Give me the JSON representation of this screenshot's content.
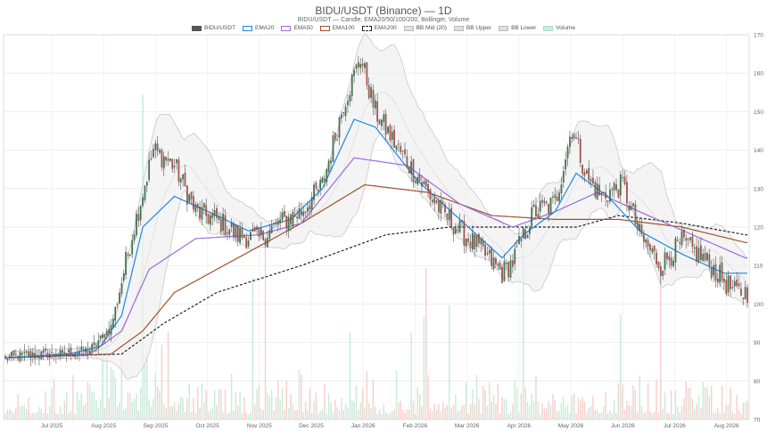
{
  "chart_data": {
    "type": "candlestick",
    "title": "BIDU/USDT (Binance) — 1D",
    "subtitle": "BIDU/USDT — Candle, EMA20/50/100/200, Bollinger, Volume",
    "legend": [
      "BIDU/USDT",
      "EMA20",
      "EMA50",
      "EMA100",
      "EMA200",
      "BB Mid (20)",
      "BB Upper",
      "BB Lower",
      "Volume"
    ],
    "x_ticks": [
      "Jul 2025",
      "Aug 2025",
      "Sep 2025",
      "Oct 2025",
      "Nov 2025",
      "Dec 2025",
      "Jan 2026",
      "Feb 2026",
      "Mar 2026",
      "Apr 2026",
      "May 2026",
      "Jun 2026",
      "Jul 2026",
      "Aug 2026"
    ],
    "y_ticks": [
      70,
      80,
      90,
      100,
      110,
      120,
      130,
      140,
      150,
      160,
      170
    ],
    "ylim": [
      70,
      170
    ],
    "grid": true,
    "legend_position": "top-center",
    "price_anchors": [
      [
        0,
        86
      ],
      [
        12,
        87
      ],
      [
        25,
        87
      ],
      [
        40,
        88
      ],
      [
        50,
        94
      ],
      [
        60,
        118
      ],
      [
        70,
        140
      ],
      [
        80,
        136
      ],
      [
        90,
        124
      ],
      [
        100,
        122
      ],
      [
        110,
        118
      ],
      [
        120,
        117
      ],
      [
        130,
        121
      ],
      [
        140,
        124
      ],
      [
        150,
        131
      ],
      [
        160,
        152
      ],
      [
        168,
        164
      ],
      [
        175,
        150
      ],
      [
        185,
        141
      ],
      [
        195,
        133
      ],
      [
        205,
        125
      ],
      [
        215,
        119
      ],
      [
        225,
        114
      ],
      [
        235,
        108
      ],
      [
        240,
        111
      ],
      [
        250,
        124
      ],
      [
        260,
        126
      ],
      [
        268,
        146
      ],
      [
        275,
        133
      ],
      [
        282,
        128
      ],
      [
        292,
        131
      ],
      [
        300,
        118
      ],
      [
        310,
        110
      ],
      [
        320,
        116
      ],
      [
        330,
        112
      ],
      [
        340,
        106
      ],
      [
        345,
        103
      ],
      [
        351,
        103
      ]
    ],
    "ema20_anchors": [
      [
        0,
        86
      ],
      [
        30,
        87
      ],
      [
        45,
        89
      ],
      [
        55,
        97
      ],
      [
        65,
        120
      ],
      [
        80,
        128
      ],
      [
        100,
        123
      ],
      [
        115,
        119
      ],
      [
        135,
        122
      ],
      [
        150,
        130
      ],
      [
        165,
        148
      ],
      [
        175,
        146
      ],
      [
        195,
        132
      ],
      [
        215,
        122
      ],
      [
        235,
        112
      ],
      [
        245,
        118
      ],
      [
        260,
        124
      ],
      [
        270,
        134
      ],
      [
        285,
        128
      ],
      [
        300,
        119
      ],
      [
        320,
        113
      ],
      [
        340,
        108
      ],
      [
        350,
        108
      ]
    ],
    "ema50_anchors": [
      [
        0,
        86
      ],
      [
        40,
        87
      ],
      [
        55,
        93
      ],
      [
        68,
        109
      ],
      [
        90,
        117
      ],
      [
        120,
        118
      ],
      [
        140,
        121
      ],
      [
        165,
        138
      ],
      [
        190,
        136
      ],
      [
        215,
        126
      ],
      [
        240,
        120
      ],
      [
        260,
        124
      ],
      [
        280,
        129
      ],
      [
        300,
        124
      ],
      [
        325,
        118
      ],
      [
        350,
        112
      ]
    ],
    "ema100_anchors": [
      [
        0,
        86
      ],
      [
        50,
        87
      ],
      [
        65,
        93
      ],
      [
        80,
        103
      ],
      [
        110,
        112
      ],
      [
        140,
        121
      ],
      [
        170,
        131
      ],
      [
        200,
        129
      ],
      [
        230,
        123
      ],
      [
        260,
        122
      ],
      [
        290,
        122
      ],
      [
        320,
        120
      ],
      [
        350,
        116
      ]
    ],
    "ema200_anchors": [
      [
        0,
        86
      ],
      [
        55,
        87
      ],
      [
        75,
        95
      ],
      [
        100,
        103
      ],
      [
        140,
        110
      ],
      [
        180,
        118
      ],
      [
        210,
        120
      ],
      [
        240,
        120
      ],
      [
        270,
        120
      ],
      [
        290,
        123
      ],
      [
        320,
        121
      ],
      [
        350,
        118
      ]
    ],
    "volume_axis_max": 170
  }
}
